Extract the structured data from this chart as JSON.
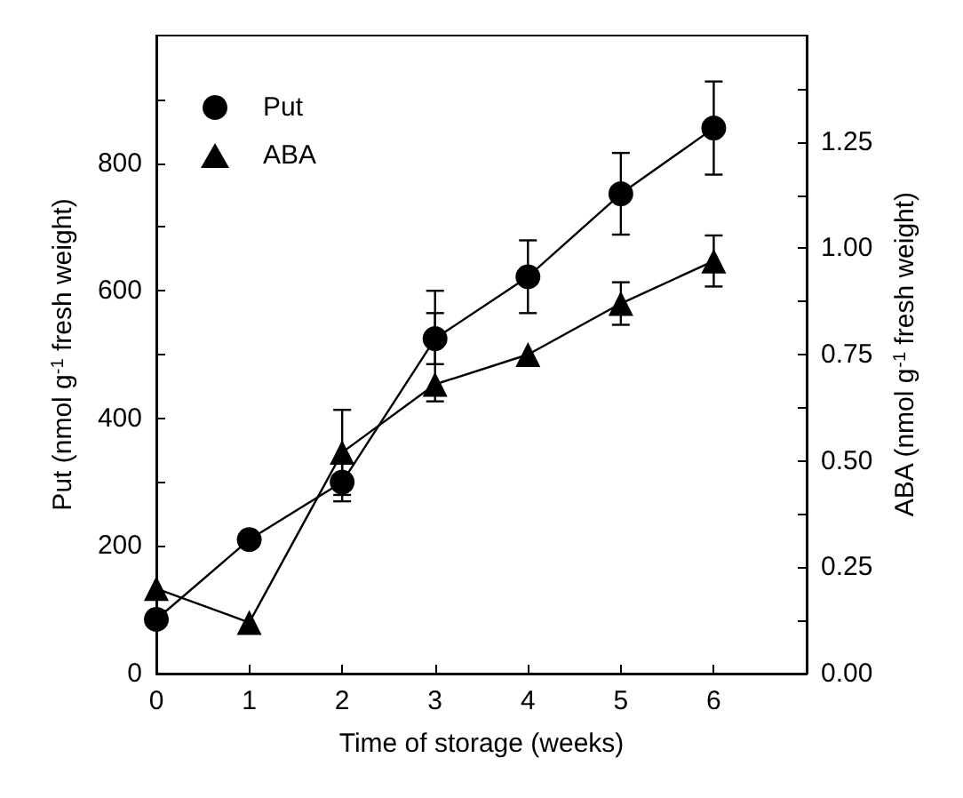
{
  "chart_data": {
    "type": "line",
    "xlabel": "Time of storage (weeks)",
    "ylabel": "Put (nmol g$^{-1}$ fresh weight)",
    "y2label": "ABA (nmol g$^{-1}$ fresh weight)",
    "x": [
      0,
      1,
      2,
      3,
      4,
      5,
      6
    ],
    "series": [
      {
        "name": "Put",
        "color": "#000000",
        "marker": "circle",
        "values": [
          85,
          210,
          300,
          525,
          622,
          752,
          855
        ],
        "errors": [
          null,
          10,
          30,
          40,
          57,
          64,
          73
        ]
      },
      {
        "name": "ABA",
        "color": "#000000",
        "marker": "triangle",
        "axis": "y2",
        "values": [
          0.2,
          0.12,
          0.52,
          0.68,
          0.75,
          0.87,
          0.97
        ],
        "errors": [
          null,
          null,
          0.1,
          [
            0.64,
            0.9
          ],
          null,
          0.05,
          0.06
        ]
      }
    ],
    "xlim": [
      0,
      7
    ],
    "xticks": [
      0,
      1,
      2,
      3,
      4,
      5,
      6
    ],
    "ylim": [
      0,
      1000
    ],
    "yticks": [
      0,
      {
        "value": 100,
        "label": null
      },
      200,
      {
        "value": 300,
        "label": null
      },
      400,
      {
        "value": 500,
        "label": null
      },
      600,
      {
        "value": 700,
        "label": null
      },
      800,
      {
        "value": 900,
        "label": null
      }
    ],
    "y2lim": [
      0,
      1.5
    ],
    "y2ticks": [
      {
        "value": 0,
        "label": "0.00"
      },
      {
        "value": 0.125,
        "label": null
      },
      {
        "value": 0.25,
        "label": "0.25"
      },
      {
        "value": 0.375,
        "label": null
      },
      {
        "value": 0.5,
        "label": "0.50"
      },
      {
        "value": 0.625,
        "label": null
      },
      {
        "value": 0.75,
        "label": "0.75"
      },
      {
        "value": 0.875,
        "label": null
      },
      {
        "value": 1,
        "label": "1.00"
      },
      {
        "value": 1.125,
        "label": null
      },
      {
        "value": 1.25,
        "label": "1.25"
      },
      {
        "value": 1.375,
        "label": null
      }
    ],
    "legend": "top left",
    "grid": false,
    "line_style": "solid"
  }
}
